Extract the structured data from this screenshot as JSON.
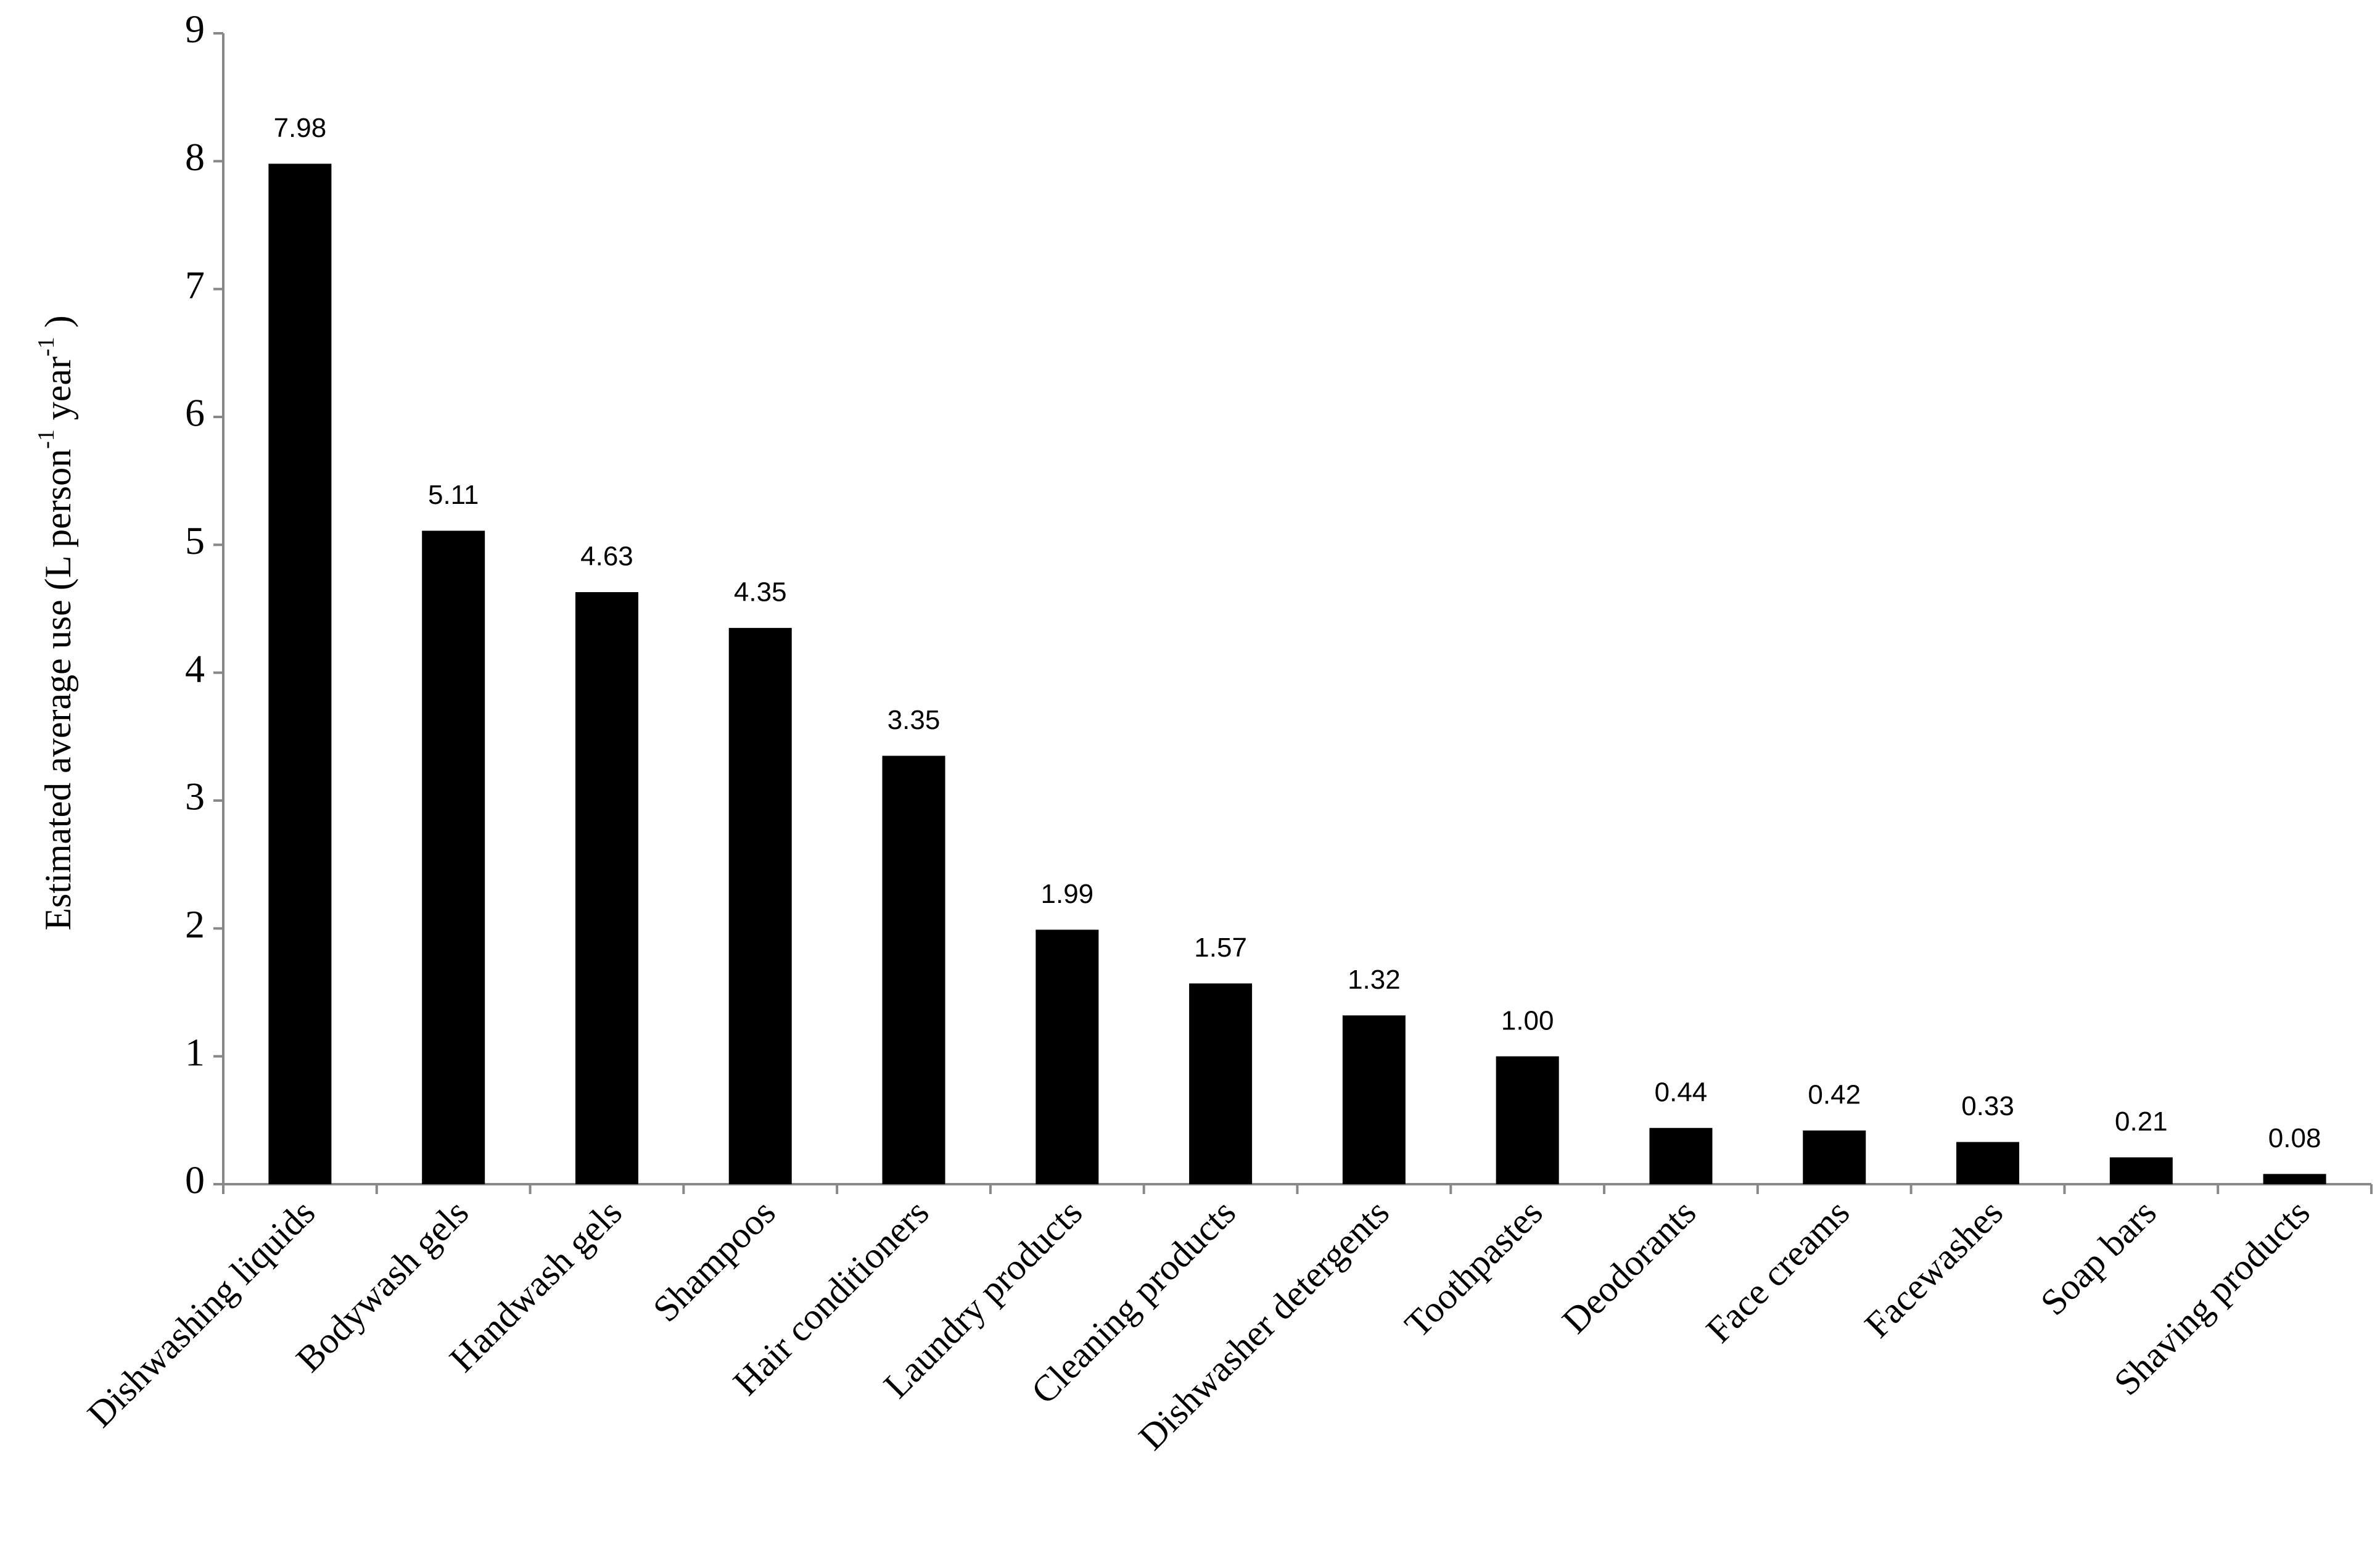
{
  "chart_data": {
    "type": "bar",
    "y_label": [
      "Estimated average use (L person",
      "-1",
      " year",
      "-1",
      " )"
    ],
    "categories": [
      "Dishwashing liquids",
      "Bodywash gels",
      "Handwash gels",
      "Shampoos",
      "Hair conditioners",
      "Laundry products",
      "Cleaning products",
      "Dishwasher detergents",
      "Toothpastes",
      "Deodorants",
      "Face creams",
      "Facewashes",
      "Soap bars",
      "Shaving products"
    ],
    "values": [
      7.98,
      5.11,
      4.63,
      4.35,
      3.35,
      1.99,
      1.57,
      1.32,
      1.0,
      0.44,
      0.42,
      0.33,
      0.21,
      0.08
    ],
    "value_labels": [
      "7.98",
      "5.11",
      "4.63",
      "4.35",
      "3.35",
      "1.99",
      "1.57",
      "1.32",
      "1.00",
      "0.44",
      "0.42",
      "0.33",
      "0.21",
      "0.08"
    ],
    "color": "#000000",
    "ylim": [
      0,
      9
    ],
    "yticks": [
      0,
      1,
      2,
      3,
      4,
      5,
      6,
      7,
      8,
      9
    ],
    "grid": false
  }
}
